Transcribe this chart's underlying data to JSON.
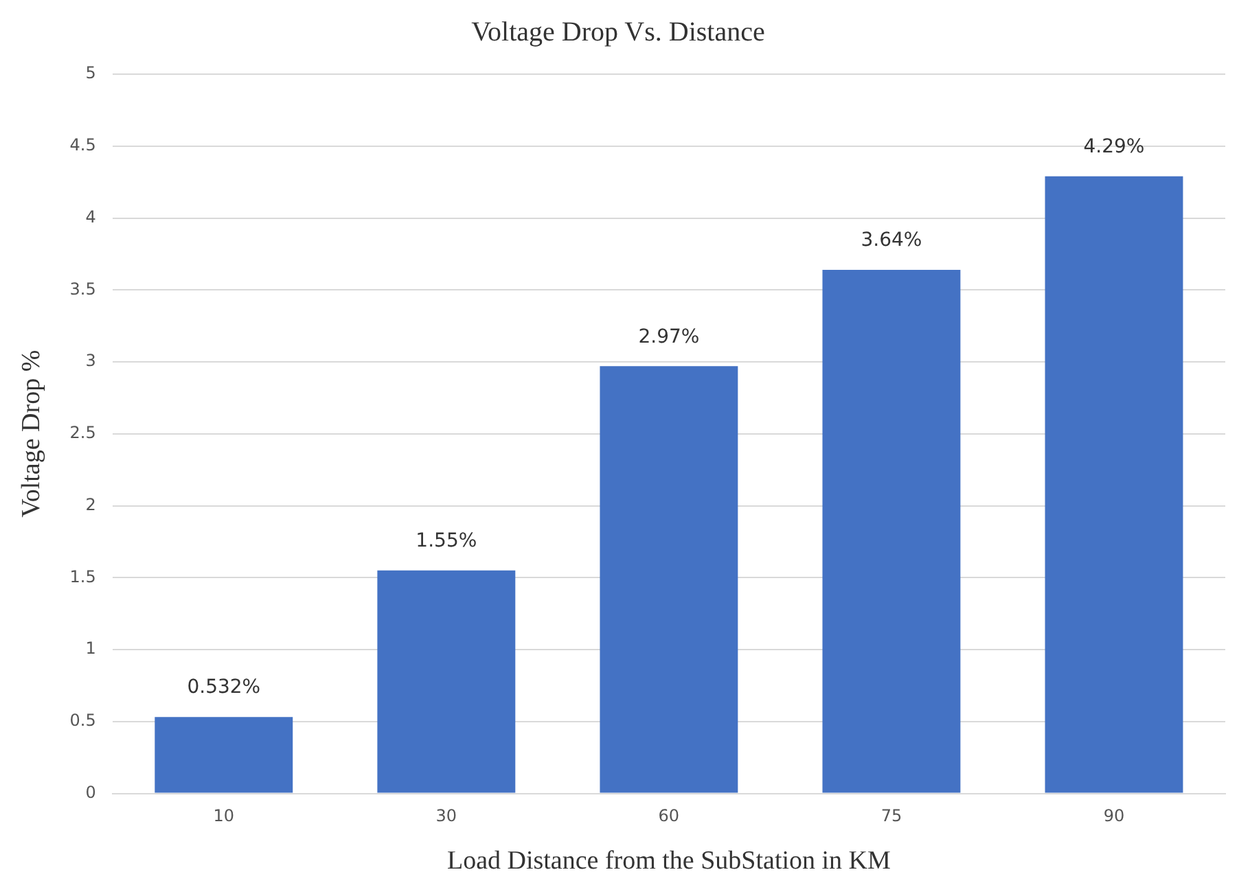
{
  "chart_data": {
    "type": "bar",
    "title": "Voltage Drop Vs. Distance",
    "xlabel": "Load Distance from the SubStation in KM",
    "ylabel": "Voltage Drop %",
    "categories": [
      "10",
      "30",
      "60",
      "75",
      "90"
    ],
    "values": [
      0.532,
      1.55,
      2.97,
      3.64,
      4.29
    ],
    "value_labels": [
      "0.532%",
      "1.55%",
      "2.97%",
      "3.64%",
      "4.29%"
    ],
    "color": "#4472c4",
    "ylim": [
      0,
      5
    ],
    "yticks": [
      0,
      0.5,
      1,
      1.5,
      2,
      2.5,
      3,
      3.5,
      4,
      4.5,
      5
    ],
    "grid": "y",
    "legend": false
  }
}
